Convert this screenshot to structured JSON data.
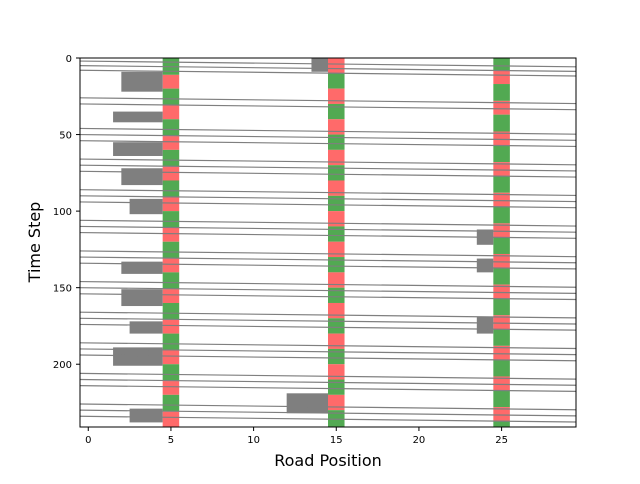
{
  "chart_data": {
    "type": "heatmap",
    "title": "",
    "xlabel": "Road Position",
    "ylabel": "Time Step",
    "xlim": [
      -0.5,
      29.5
    ],
    "ylim": [
      241,
      0
    ],
    "y_inverted": true,
    "x_ticks": [
      0,
      5,
      10,
      15,
      20,
      25
    ],
    "y_ticks": [
      0,
      50,
      100,
      150,
      200
    ],
    "cell_color": "#7f7f7f",
    "background_color": "#ffffff",
    "signal_colors": {
      "red": "#ff5a5a",
      "green": "#3fa03f"
    },
    "traffic_lights": [
      {
        "position": 5,
        "phases": [
          {
            "state": "green",
            "from": 0,
            "to": 11
          },
          {
            "state": "red",
            "from": 11,
            "to": 20
          },
          {
            "state": "green",
            "from": 20,
            "to": 31
          },
          {
            "state": "red",
            "from": 31,
            "to": 40
          },
          {
            "state": "green",
            "from": 40,
            "to": 51
          },
          {
            "state": "red",
            "from": 51,
            "to": 60
          },
          {
            "state": "green",
            "from": 60,
            "to": 71
          },
          {
            "state": "red",
            "from": 71,
            "to": 80
          },
          {
            "state": "green",
            "from": 80,
            "to": 91
          },
          {
            "state": "red",
            "from": 91,
            "to": 100
          },
          {
            "state": "green",
            "from": 100,
            "to": 111
          },
          {
            "state": "red",
            "from": 111,
            "to": 120
          },
          {
            "state": "green",
            "from": 120,
            "to": 131
          },
          {
            "state": "red",
            "from": 131,
            "to": 140
          },
          {
            "state": "green",
            "from": 140,
            "to": 151
          },
          {
            "state": "red",
            "from": 151,
            "to": 160
          },
          {
            "state": "green",
            "from": 160,
            "to": 171
          },
          {
            "state": "red",
            "from": 171,
            "to": 180
          },
          {
            "state": "green",
            "from": 180,
            "to": 191
          },
          {
            "state": "red",
            "from": 191,
            "to": 200
          },
          {
            "state": "green",
            "from": 200,
            "to": 211
          },
          {
            "state": "red",
            "from": 211,
            "to": 220
          },
          {
            "state": "green",
            "from": 220,
            "to": 231
          },
          {
            "state": "red",
            "from": 231,
            "to": 241
          }
        ]
      },
      {
        "position": 15,
        "phases": [
          {
            "state": "red",
            "from": 0,
            "to": 10
          },
          {
            "state": "green",
            "from": 10,
            "to": 20
          },
          {
            "state": "red",
            "from": 20,
            "to": 30
          },
          {
            "state": "green",
            "from": 30,
            "to": 40
          },
          {
            "state": "red",
            "from": 40,
            "to": 50
          },
          {
            "state": "green",
            "from": 50,
            "to": 60
          },
          {
            "state": "red",
            "from": 60,
            "to": 70
          },
          {
            "state": "green",
            "from": 70,
            "to": 80
          },
          {
            "state": "red",
            "from": 80,
            "to": 90
          },
          {
            "state": "green",
            "from": 90,
            "to": 100
          },
          {
            "state": "red",
            "from": 100,
            "to": 110
          },
          {
            "state": "green",
            "from": 110,
            "to": 120
          },
          {
            "state": "red",
            "from": 120,
            "to": 130
          },
          {
            "state": "green",
            "from": 130,
            "to": 140
          },
          {
            "state": "red",
            "from": 140,
            "to": 150
          },
          {
            "state": "green",
            "from": 150,
            "to": 160
          },
          {
            "state": "red",
            "from": 160,
            "to": 170
          },
          {
            "state": "green",
            "from": 170,
            "to": 180
          },
          {
            "state": "red",
            "from": 180,
            "to": 190
          },
          {
            "state": "green",
            "from": 190,
            "to": 200
          },
          {
            "state": "red",
            "from": 200,
            "to": 210
          },
          {
            "state": "green",
            "from": 210,
            "to": 220
          },
          {
            "state": "red",
            "from": 220,
            "to": 230
          },
          {
            "state": "green",
            "from": 230,
            "to": 241
          }
        ]
      },
      {
        "position": 25,
        "phases": [
          {
            "state": "green",
            "from": 0,
            "to": 8
          },
          {
            "state": "red",
            "from": 8,
            "to": 17
          },
          {
            "state": "green",
            "from": 17,
            "to": 28
          },
          {
            "state": "red",
            "from": 28,
            "to": 37
          },
          {
            "state": "green",
            "from": 37,
            "to": 48
          },
          {
            "state": "red",
            "from": 48,
            "to": 57
          },
          {
            "state": "green",
            "from": 57,
            "to": 68
          },
          {
            "state": "red",
            "from": 68,
            "to": 77
          },
          {
            "state": "green",
            "from": 77,
            "to": 88
          },
          {
            "state": "red",
            "from": 88,
            "to": 97
          },
          {
            "state": "green",
            "from": 97,
            "to": 108
          },
          {
            "state": "red",
            "from": 108,
            "to": 117
          },
          {
            "state": "green",
            "from": 117,
            "to": 128
          },
          {
            "state": "red",
            "from": 128,
            "to": 137
          },
          {
            "state": "green",
            "from": 137,
            "to": 148
          },
          {
            "state": "red",
            "from": 148,
            "to": 157
          },
          {
            "state": "green",
            "from": 157,
            "to": 168
          },
          {
            "state": "red",
            "from": 168,
            "to": 177
          },
          {
            "state": "green",
            "from": 177,
            "to": 188
          },
          {
            "state": "red",
            "from": 188,
            "to": 197
          },
          {
            "state": "green",
            "from": 197,
            "to": 208
          },
          {
            "state": "red",
            "from": 208,
            "to": 217
          },
          {
            "state": "green",
            "from": 217,
            "to": 228
          },
          {
            "state": "red",
            "from": 228,
            "to": 237
          },
          {
            "state": "green",
            "from": 237,
            "to": 241
          }
        ]
      }
    ],
    "queues": [
      {
        "x_start": 2,
        "x_end": 4.5,
        "t_start": 9,
        "t_end": 22
      },
      {
        "x_start": 1.5,
        "x_end": 4.5,
        "t_start": 35,
        "t_end": 42
      },
      {
        "x_start": 1.5,
        "x_end": 4.5,
        "t_start": 55,
        "t_end": 64
      },
      {
        "x_start": 2,
        "x_end": 4.5,
        "t_start": 72,
        "t_end": 83
      },
      {
        "x_start": 2.5,
        "x_end": 4.5,
        "t_start": 92,
        "t_end": 102
      },
      {
        "x_start": 2,
        "x_end": 4.5,
        "t_start": 133,
        "t_end": 141
      },
      {
        "x_start": 2,
        "x_end": 4.5,
        "t_start": 151,
        "t_end": 162
      },
      {
        "x_start": 2.5,
        "x_end": 4.5,
        "t_start": 172,
        "t_end": 180
      },
      {
        "x_start": 1.5,
        "x_end": 4.5,
        "t_start": 189,
        "t_end": 201
      },
      {
        "x_start": 2.5,
        "x_end": 4.5,
        "t_start": 229,
        "t_end": 238
      },
      {
        "x_start": 13.5,
        "x_end": 14.5,
        "t_start": 0,
        "t_end": 9
      },
      {
        "x_start": 12,
        "x_end": 14.5,
        "t_start": 219,
        "t_end": 232
      },
      {
        "x_start": 23.5,
        "x_end": 24.5,
        "t_start": 112,
        "t_end": 122
      },
      {
        "x_start": 23.5,
        "x_end": 24.5,
        "t_start": 131,
        "t_end": 140
      },
      {
        "x_start": 23.5,
        "x_end": 24.5,
        "t_start": 169,
        "t_end": 180
      }
    ],
    "trajectories": {
      "slope_cells_per_step": 1.0,
      "start_times": [
        2,
        5,
        8,
        26,
        30,
        46,
        50,
        54,
        66,
        70,
        74,
        86,
        90,
        94,
        106,
        110,
        114,
        126,
        130,
        134,
        146,
        150,
        154,
        166,
        170,
        174,
        186,
        190,
        194,
        206,
        210,
        214,
        226,
        230,
        234
      ]
    }
  }
}
